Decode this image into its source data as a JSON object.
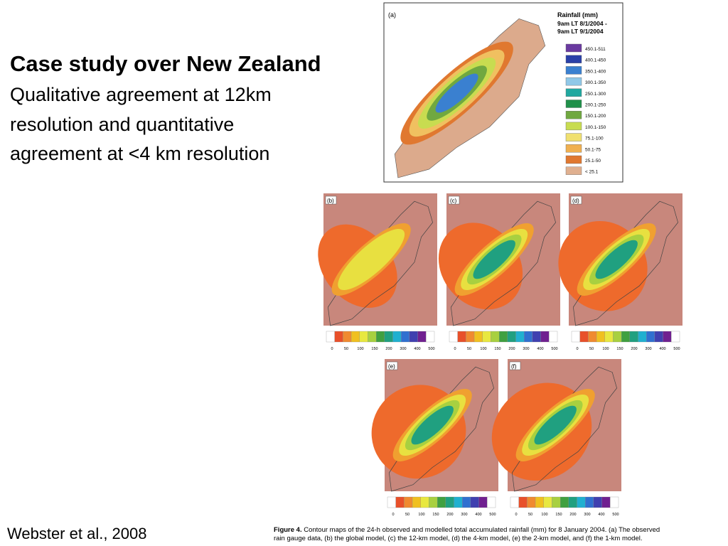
{
  "slide": {
    "title": "Case study over New Zealand",
    "body": [
      "Qualitative agreement at 12km",
      "resolution  and quantitative",
      "agreement at <4 km resolution"
    ],
    "citation": "Webster et al., 2008"
  },
  "figure": {
    "panel_a": {
      "label": "(a)",
      "legend_title": "Rainfall (mm)",
      "legend_period": [
        "9am LT 8/1/2004 -",
        "9am LT 9/1/2004"
      ],
      "legend_entries": [
        {
          "label": "450.1-511",
          "color": "#6a3aa0"
        },
        {
          "label": "400.1-450",
          "color": "#2a40a8"
        },
        {
          "label": "350.1-400",
          "color": "#3a80d0"
        },
        {
          "label": "300.1-350",
          "color": "#90c8e8"
        },
        {
          "label": "250.1-300",
          "color": "#20a8a0"
        },
        {
          "label": "200.1-250",
          "color": "#20904a"
        },
        {
          "label": "150.1-200",
          "color": "#70a840"
        },
        {
          "label": "100.1-150",
          "color": "#c8dc50"
        },
        {
          "label": "75.1-100",
          "color": "#f0e070"
        },
        {
          "label": "50.1-75",
          "color": "#f0b050"
        },
        {
          "label": "25.1-50",
          "color": "#e07830"
        },
        {
          "label": "< 25.1",
          "color": "#e0b090"
        }
      ]
    },
    "panels": [
      {
        "label": "(b)"
      },
      {
        "label": "(c)"
      },
      {
        "label": "(d)"
      },
      {
        "label": "(e)"
      },
      {
        "label": "(f)"
      }
    ],
    "colorbar_ticks": [
      0,
      50,
      100,
      150,
      200,
      300,
      400,
      500
    ],
    "caption_label": "Figure 4.",
    "caption": [
      "Contour maps of the 24-h observed and modelled total accumulated rainfall (mm) for 8 January 2004. (a) The observed",
      "rain gauge data, (b) the global model, (c) the 12-km model, (d) the 4-km model, (e) the 2-km model, and (f) the 1-km model."
    ]
  }
}
